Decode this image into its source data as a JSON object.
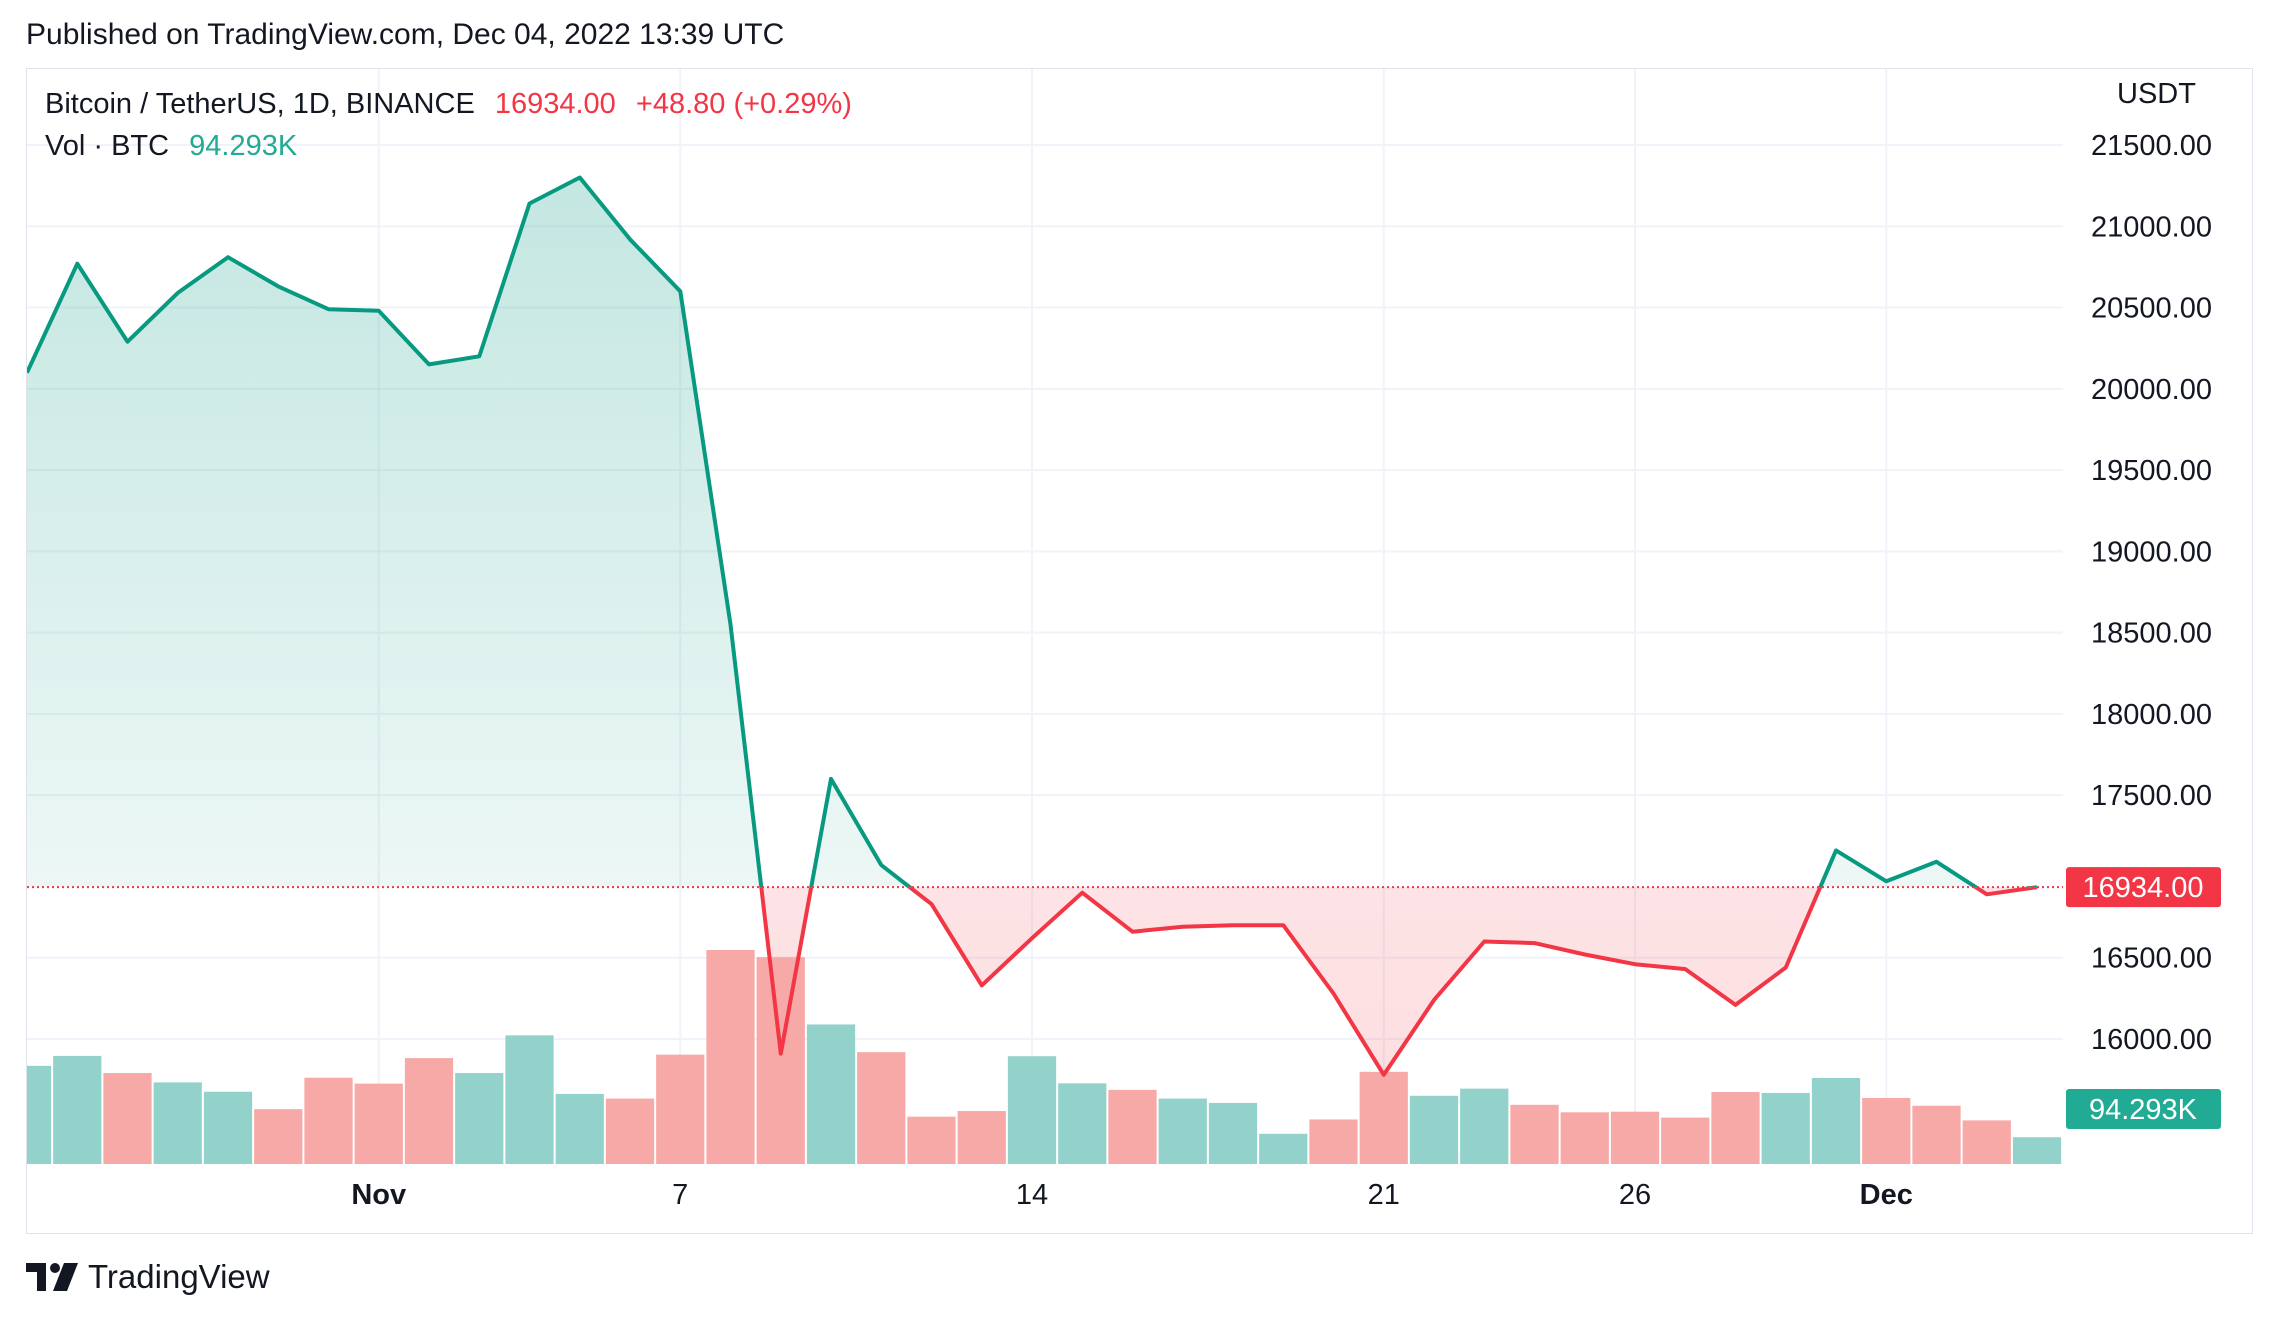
{
  "header": {
    "published": "Published on TradingView.com, Dec 04, 2022 13:39 UTC"
  },
  "legend": {
    "symbol": "Bitcoin / TetherUS, 1D, BINANCE",
    "last_price": "16934.00",
    "change": "+48.80 (+0.29%)",
    "vol_label": "Vol · BTC",
    "vol_value": "94.293K"
  },
  "colors": {
    "up": "#089981",
    "down": "#f23645",
    "vol_up": "#92d2cb",
    "vol_down": "#f7a9a7",
    "grid": "#f0f3fa"
  },
  "branding": {
    "logo_icon": "tradingview-logo-icon",
    "name": "TradingView"
  },
  "chart_data": {
    "type": "line",
    "title": "Bitcoin / TetherUS, 1D, BINANCE",
    "currency": "USDT",
    "baseline": 16934.0,
    "baseline_label": "16934.00",
    "volume_label": "94.293K",
    "y_ticks": [
      "21500.00",
      "21000.00",
      "20500.00",
      "20000.00",
      "19500.00",
      "19000.00",
      "18500.00",
      "18000.00",
      "17500.00",
      "16500.00",
      "16000.00"
    ],
    "x_ticks": [
      {
        "label": "Nov",
        "day": "2022-11-01",
        "bold": true
      },
      {
        "label": "7",
        "day": "2022-11-07",
        "bold": false
      },
      {
        "label": "14",
        "day": "2022-11-14",
        "bold": false
      },
      {
        "label": "21",
        "day": "2022-11-21",
        "bold": false
      },
      {
        "label": "26",
        "day": "2022-11-26",
        "bold": false
      },
      {
        "label": "Dec",
        "day": "2022-12-01",
        "bold": true
      }
    ],
    "ylim": [
      15200,
      21900
    ],
    "dates": [
      "2022-10-25",
      "2022-10-26",
      "2022-10-27",
      "2022-10-28",
      "2022-10-29",
      "2022-10-30",
      "2022-10-31",
      "2022-11-01",
      "2022-11-02",
      "2022-11-03",
      "2022-11-04",
      "2022-11-05",
      "2022-11-06",
      "2022-11-07",
      "2022-11-08",
      "2022-11-09",
      "2022-11-10",
      "2022-11-11",
      "2022-11-12",
      "2022-11-13",
      "2022-11-14",
      "2022-11-15",
      "2022-11-16",
      "2022-11-17",
      "2022-11-18",
      "2022-11-19",
      "2022-11-20",
      "2022-11-21",
      "2022-11-22",
      "2022-11-23",
      "2022-11-24",
      "2022-11-25",
      "2022-11-26",
      "2022-11-27",
      "2022-11-28",
      "2022-11-29",
      "2022-11-30",
      "2022-12-01",
      "2022-12-02",
      "2022-12-03",
      "2022-12-04"
    ],
    "close": [
      20100,
      20770,
      20290,
      20590,
      20810,
      20630,
      20490,
      20480,
      20150,
      20200,
      21140,
      21300,
      20920,
      20600,
      18550,
      15910,
      17600,
      17070,
      16830,
      16330,
      16620,
      16900,
      16660,
      16690,
      16700,
      16700,
      16280,
      15780,
      16240,
      16600,
      16590,
      16520,
      16460,
      16430,
      16210,
      16440,
      17160,
      16970,
      17090,
      16890,
      16934
    ],
    "volume": {
      "ylim": [
        0,
        700
      ],
      "values": [
        315,
        347,
        292,
        262,
        232,
        176,
        277,
        258,
        340,
        292,
        413,
        225,
        210,
        351,
        687,
        664,
        448,
        359,
        152,
        170,
        346,
        259,
        238,
        210,
        196,
        97,
        143,
        296,
        219,
        242,
        190,
        166,
        168,
        149,
        231,
        228,
        276,
        212,
        187,
        140,
        86
      ],
      "up": [
        true,
        true,
        false,
        true,
        true,
        false,
        false,
        false,
        false,
        true,
        true,
        true,
        false,
        false,
        false,
        false,
        true,
        false,
        false,
        false,
        true,
        true,
        false,
        true,
        true,
        true,
        false,
        false,
        true,
        true,
        false,
        false,
        false,
        false,
        false,
        true,
        true,
        false,
        false,
        false,
        true
      ]
    }
  }
}
